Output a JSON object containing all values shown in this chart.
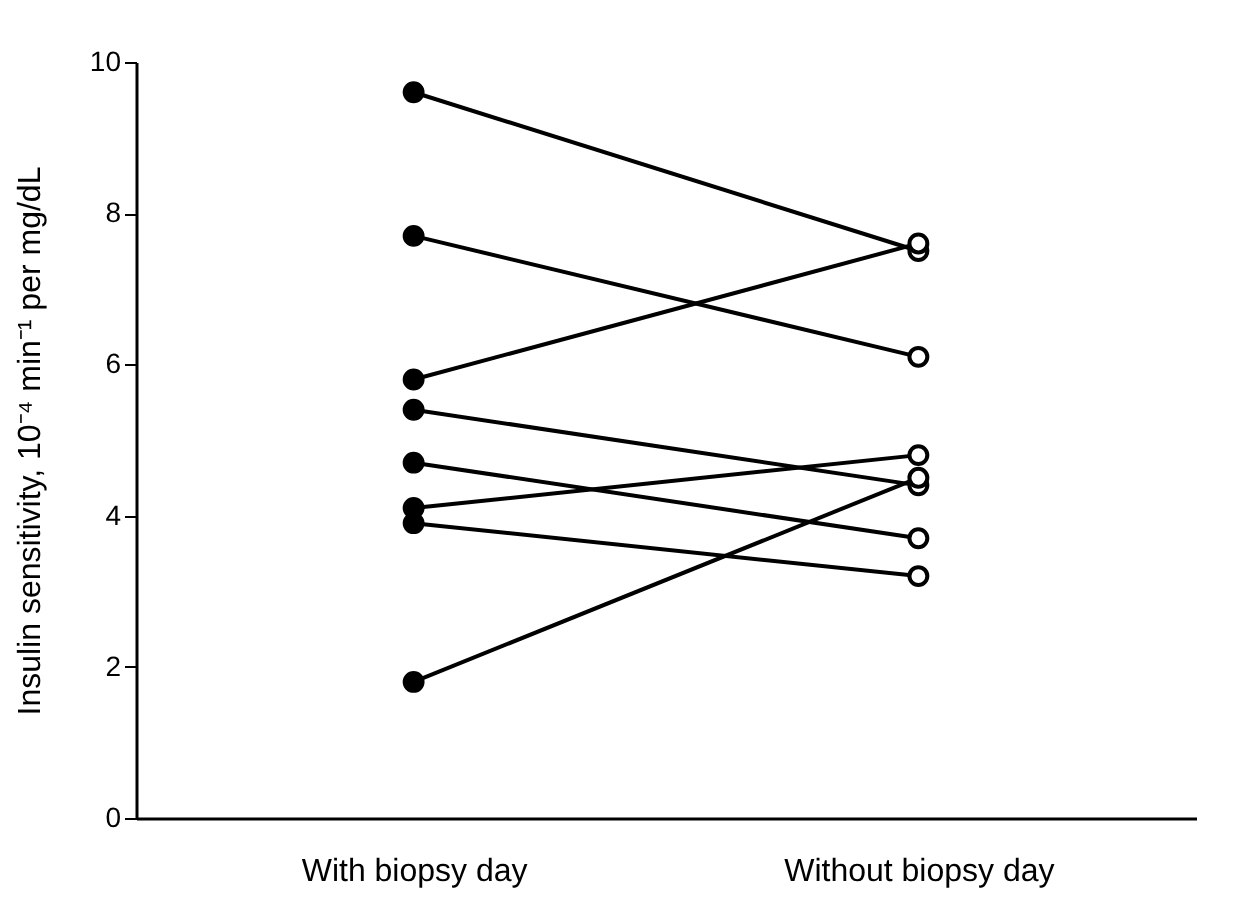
{
  "chart_data": {
    "type": "line",
    "ylabel": "Insulin sensitivity, 10⁻⁴ min⁻¹ per mg/dL",
    "categories": [
      "With biopsy day",
      "Without biopsy day"
    ],
    "series": [
      {
        "color": "#000000",
        "values": [
          9.6,
          7.5
        ]
      },
      {
        "color": "#000000",
        "values": [
          7.7,
          6.1
        ]
      },
      {
        "color": "#000000",
        "values": [
          5.8,
          7.6
        ]
      },
      {
        "color": "#000000",
        "values": [
          5.4,
          4.4
        ]
      },
      {
        "color": "#000000",
        "values": [
          4.7,
          3.7
        ]
      },
      {
        "color": "#000000",
        "values": [
          4.1,
          4.8
        ]
      },
      {
        "color": "#000000",
        "values": [
          3.9,
          3.2
        ]
      },
      {
        "color": "#000000",
        "values": [
          1.8,
          4.5
        ]
      }
    ],
    "ylim": [
      0,
      10
    ],
    "yticks": [
      0,
      2,
      4,
      6,
      8,
      10
    ],
    "marker": "circle",
    "grid": false,
    "legend": false
  }
}
